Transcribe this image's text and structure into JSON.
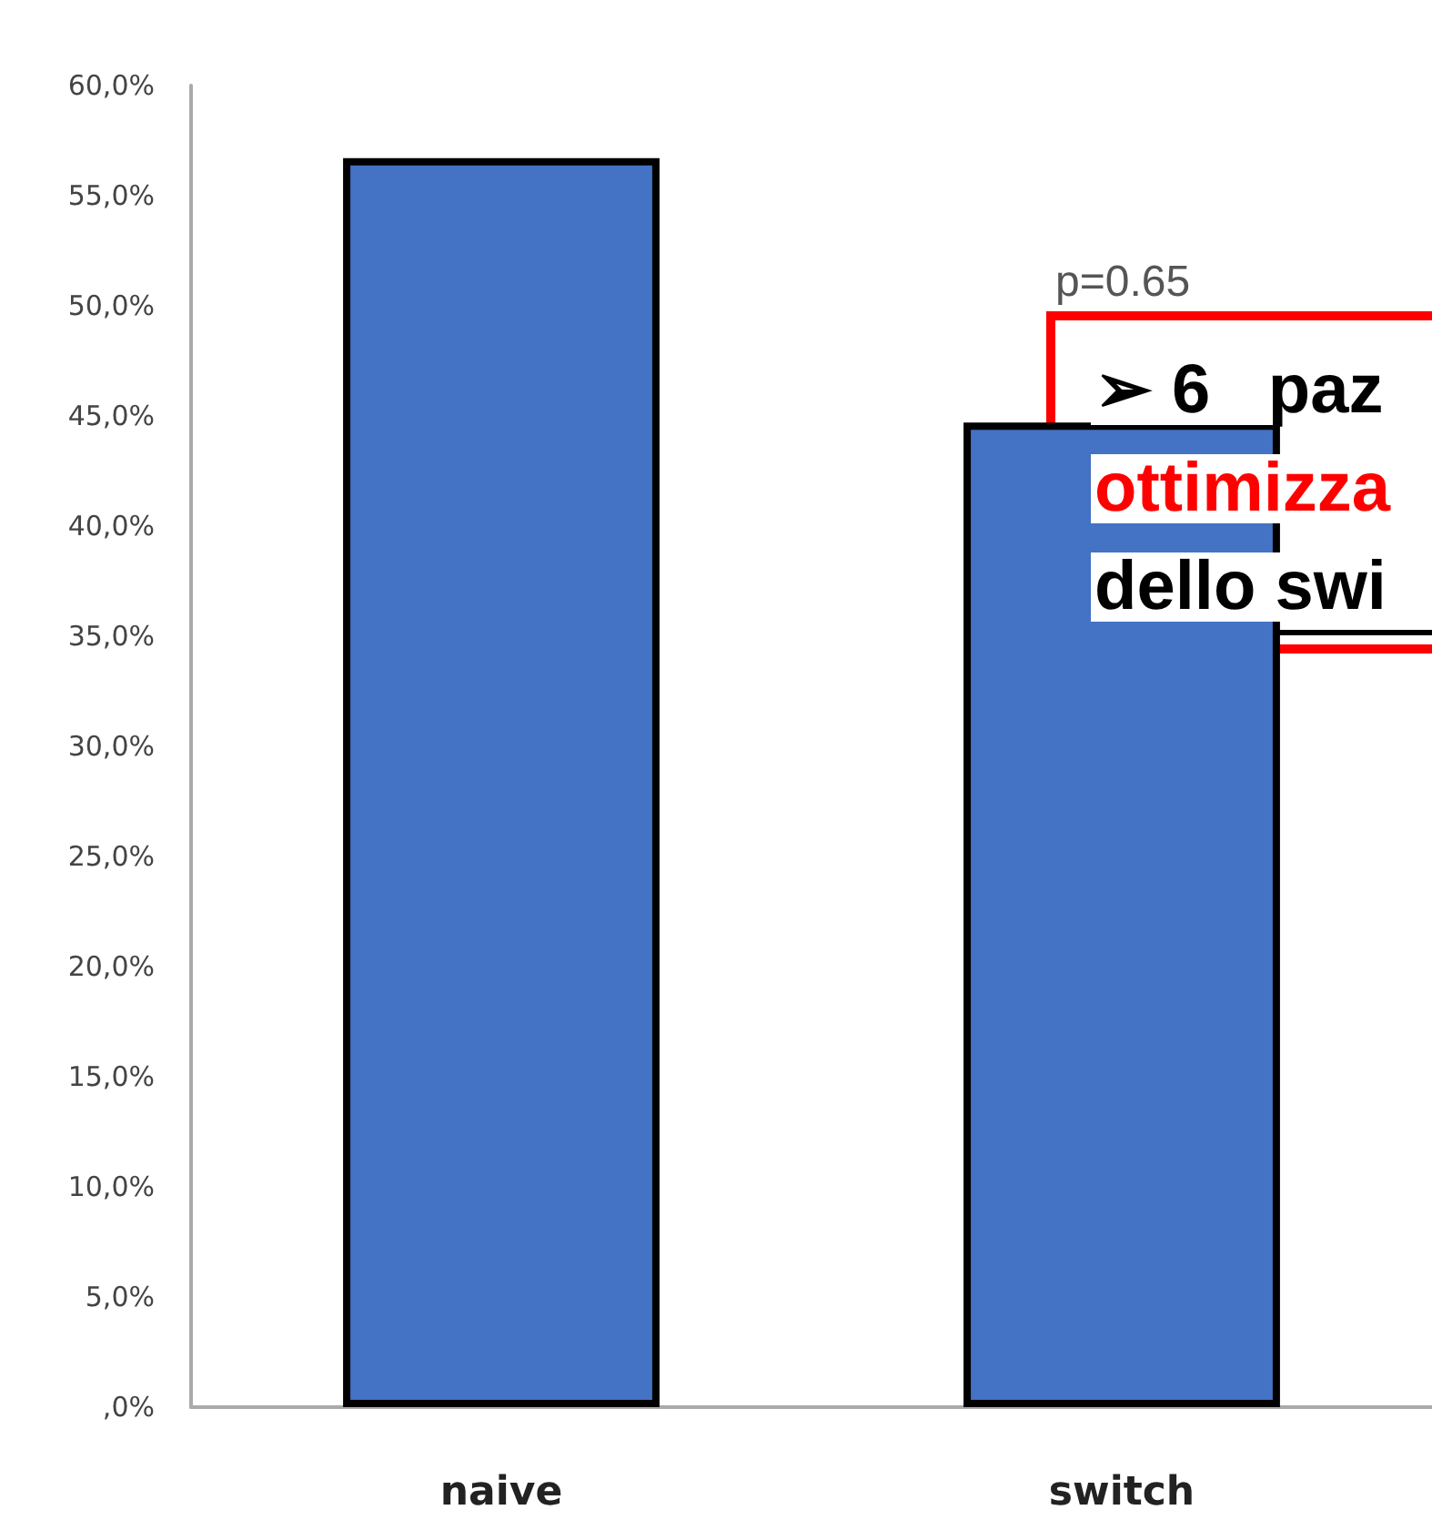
{
  "chart_data": {
    "type": "bar",
    "categories": [
      "naive",
      "switch"
    ],
    "values": [
      56.7,
      44.7
    ],
    "color": "#4472c4",
    "ylim": [
      0,
      60
    ],
    "yticks": [
      {
        "value": 0,
        "label": ",0%"
      },
      {
        "value": 5,
        "label": "5,0%"
      },
      {
        "value": 10,
        "label": "10,0%"
      },
      {
        "value": 15,
        "label": "15,0%"
      },
      {
        "value": 20,
        "label": "20,0%"
      },
      {
        "value": 25,
        "label": "25,0%"
      },
      {
        "value": 30,
        "label": "30,0%"
      },
      {
        "value": 35,
        "label": "35,0%"
      },
      {
        "value": 40,
        "label": "40,0%"
      },
      {
        "value": 45,
        "label": "45,0%"
      },
      {
        "value": 50,
        "label": "50,0%"
      },
      {
        "value": 55,
        "label": "55,0%"
      },
      {
        "value": 60,
        "label": "60,0%"
      }
    ],
    "grid": false,
    "legend": false,
    "annotations": [
      "p=0.65",
      "➢ 6   paz",
      "ottimizza",
      "dello swi"
    ]
  }
}
